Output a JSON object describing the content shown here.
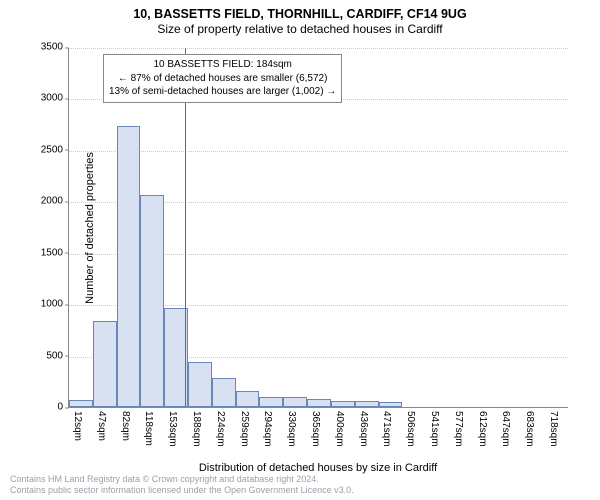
{
  "title_line1": "10, BASSETTS FIELD, THORNHILL, CARDIFF, CF14 9UG",
  "title_line2": "Size of property relative to detached houses in Cardiff",
  "chart": {
    "type": "histogram",
    "background_color": "#ffffff",
    "grid_color": "#cccccc",
    "axis_color": "#888888",
    "bar_fill_color": "#d7e1f2",
    "bar_border_color": "#6b87b8",
    "reference_line_color": "#dc3a2e",
    "ymax": 3500,
    "ytick_step": 500,
    "yticks": [
      0,
      500,
      1000,
      1500,
      2000,
      2500,
      3000,
      3500
    ],
    "x_categories": [
      "12sqm",
      "47sqm",
      "82sqm",
      "118sqm",
      "153sqm",
      "188sqm",
      "224sqm",
      "259sqm",
      "294sqm",
      "330sqm",
      "365sqm",
      "400sqm",
      "436sqm",
      "471sqm",
      "506sqm",
      "541sqm",
      "577sqm",
      "612sqm",
      "647sqm",
      "683sqm",
      "718sqm"
    ],
    "bar_values": [
      70,
      840,
      2730,
      2060,
      960,
      440,
      280,
      160,
      100,
      100,
      80,
      60,
      55,
      50,
      0,
      0,
      0,
      0,
      0,
      0,
      0
    ],
    "reference_index": 4.88,
    "ylabel": "Number of detached properties",
    "xlabel": "Distribution of detached houses by size in Cardiff",
    "title_fontsize": 12.5,
    "label_fontsize": 11,
    "tick_fontsize": 10,
    "annotation_fontsize": 10
  },
  "annotation": {
    "line1": "10 BASSETTS FIELD: 184sqm",
    "line2": "← 87% of detached houses are smaller (6,572)",
    "line3": "13% of semi-detached houses are larger (1,002) →",
    "border_color": "#888888",
    "background_color": "#ffffff"
  },
  "credits": {
    "line1": "Contains HM Land Registry data © Crown copyright and database right 2024.",
    "line2": "Contains public sector information licensed under the Open Government Licence v3.0.",
    "color": "#9aa1a8"
  }
}
